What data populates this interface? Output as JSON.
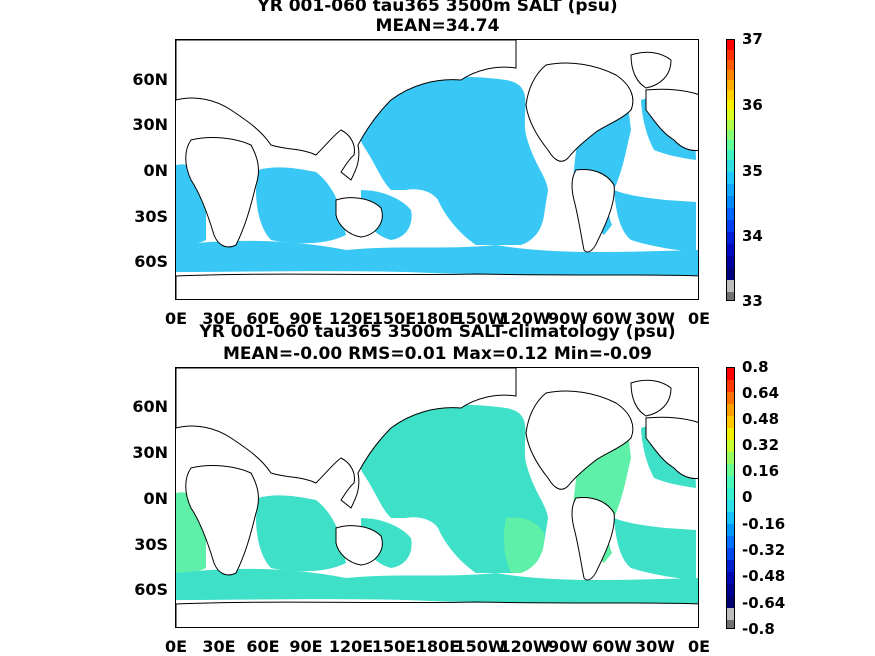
{
  "panels": [
    {
      "title_line1": "YR 001-060 tau365 3500m SALT (psu)",
      "title_line2": "MEAN=34.74",
      "colorbar_labels": [
        "37",
        "36",
        "35",
        "34",
        "33"
      ],
      "field_color": "#39c8f5",
      "lat_labels": [
        "60N",
        "30N",
        "0N",
        "30S",
        "60S"
      ],
      "lon_labels": [
        "0E",
        "30E",
        "60E",
        "90E",
        "120E",
        "150E",
        "180E",
        "150W",
        "120W",
        "90W",
        "60W",
        "30W",
        "0E"
      ]
    },
    {
      "title_line1": "YR 001-060 tau365 3500m SALT-climatology (psu)",
      "title_line2": "MEAN=-0.00   RMS=0.01   Max=0.12   Min=-0.09",
      "colorbar_labels": [
        "0.8",
        "0.64",
        "0.48",
        "0.32",
        "0.16",
        "0",
        "-0.16",
        "-0.32",
        "-0.48",
        "-0.64",
        "-0.8"
      ],
      "field_color": "#3fe0c8",
      "field_color_alt": "#5ef0a8",
      "lat_labels": [
        "60N",
        "30N",
        "0N",
        "30S",
        "60S"
      ],
      "lon_labels": [
        "0E",
        "30E",
        "60E",
        "90E",
        "120E",
        "150E",
        "180E",
        "150W",
        "120W",
        "90W",
        "60W",
        "30W",
        "0E"
      ]
    }
  ]
}
